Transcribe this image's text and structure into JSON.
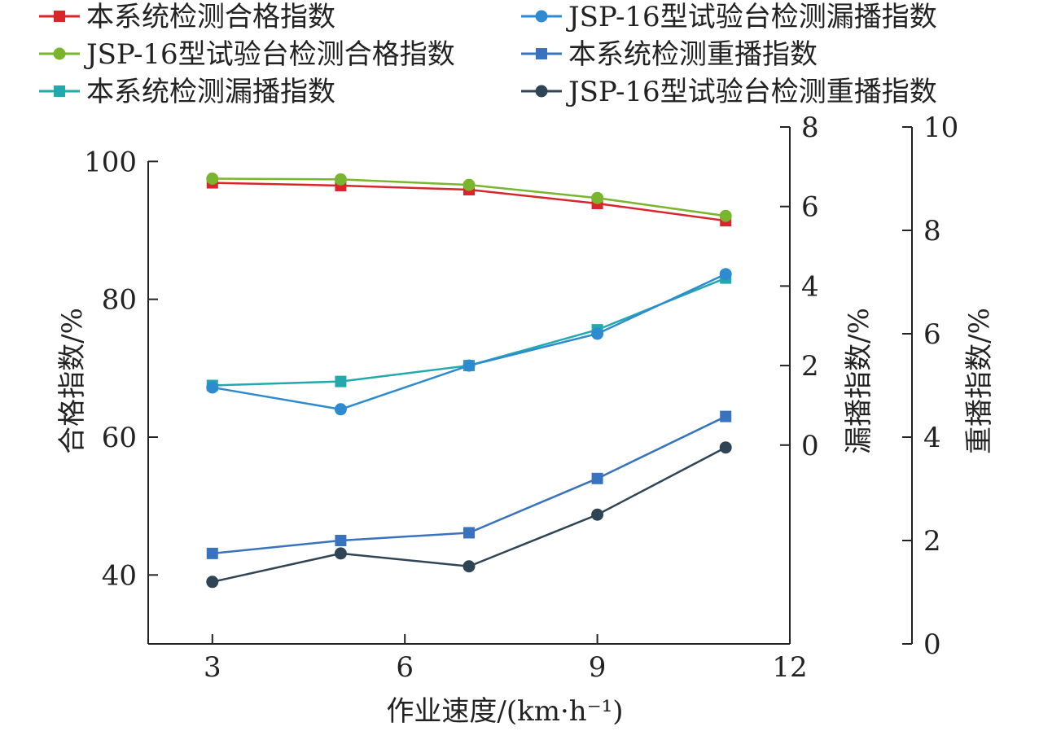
{
  "chart_data": {
    "type": "line",
    "xlabel": "作业速度/(km·h⁻¹)",
    "x_ticks": [
      "3",
      "6",
      "9",
      "12"
    ],
    "xlim": [
      2,
      12
    ],
    "axes": {
      "left": {
        "label": "合格指数/%",
        "ylim": [
          30,
          105
        ],
        "ticks": [
          "40",
          "60",
          "80",
          "100"
        ]
      },
      "right1": {
        "label": "漏播指数/%",
        "ylim": [
          -5,
          8
        ],
        "ticks": [
          "0",
          "2",
          "4",
          "6",
          "8"
        ]
      },
      "right2": {
        "label": "重播指数/%",
        "ylim": [
          0,
          10
        ],
        "ticks": [
          "0",
          "2",
          "4",
          "6",
          "8",
          "10"
        ]
      }
    },
    "x": [
      3,
      5,
      7,
      9,
      11
    ],
    "series": [
      {
        "name": "本系统检测合格指数",
        "axis": "left",
        "marker": "square",
        "color": "#d8262b",
        "values": [
          96.9,
          96.5,
          95.9,
          93.9,
          91.4
        ]
      },
      {
        "name": "JSP-16型试验台检测合格指数",
        "axis": "left",
        "marker": "circle",
        "color": "#7ab52e",
        "values": [
          97.5,
          97.4,
          96.6,
          94.7,
          92.1
        ]
      },
      {
        "name": "本系统检测漏播指数",
        "axis": "right1",
        "marker": "square",
        "color": "#22a9ad",
        "values": [
          1.5,
          1.6,
          2.0,
          2.9,
          4.2
        ]
      },
      {
        "name": "JSP-16型试验台检测漏播指数",
        "axis": "right1",
        "marker": "circle",
        "color": "#2e8bcf",
        "values": [
          1.45,
          0.9,
          2.0,
          2.8,
          4.3
        ]
      },
      {
        "name": "本系统检测重播指数",
        "axis": "right2",
        "marker": "square",
        "color": "#3a73bd",
        "values": [
          1.75,
          2.0,
          2.15,
          3.2,
          4.4
        ]
      },
      {
        "name": "JSP-16型试验台检测重播指数",
        "axis": "right2",
        "marker": "circle",
        "color": "#2f4556",
        "values": [
          1.2,
          1.75,
          1.5,
          2.5,
          3.8
        ]
      }
    ],
    "legend_position": "top",
    "grid": false
  }
}
